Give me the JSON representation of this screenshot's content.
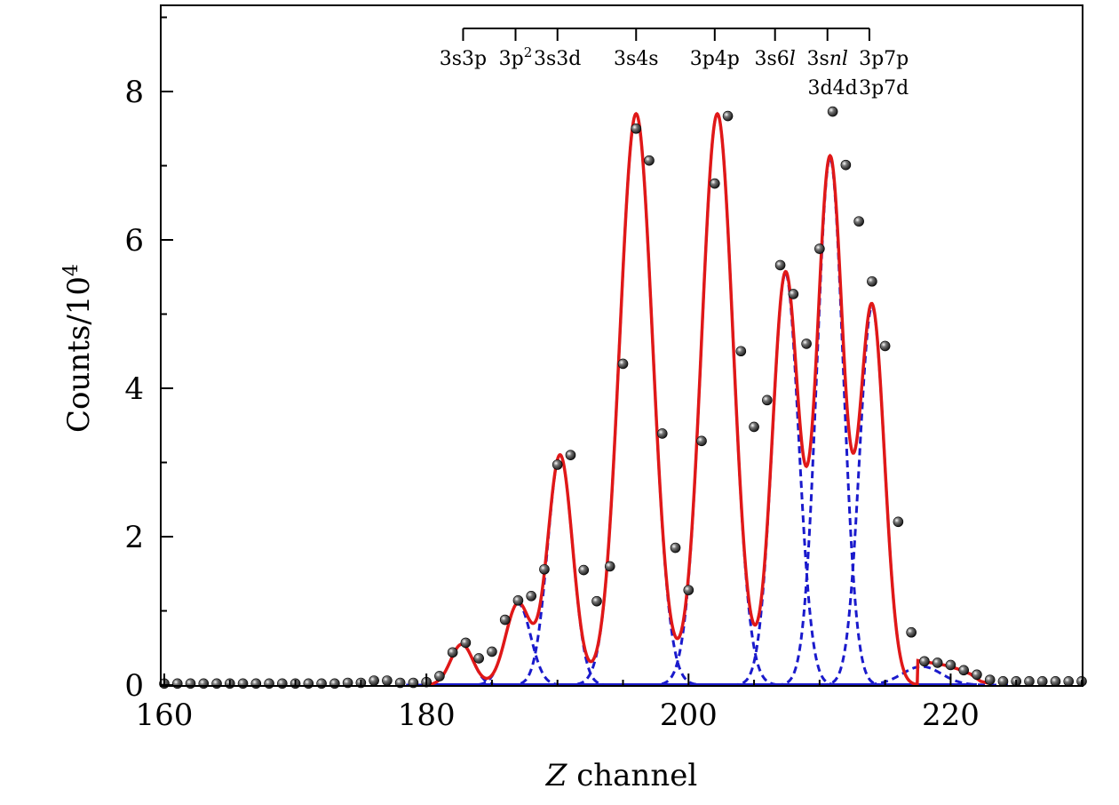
{
  "chart_data": {
    "type": "scatter",
    "xlabel": {
      "italic": "Z",
      "rest": " channel"
    },
    "ylabel": {
      "base": "Counts/10",
      "sup": "4"
    },
    "xlim": [
      160,
      230
    ],
    "ylim": [
      0,
      9.2
    ],
    "xticks": [
      160,
      180,
      200,
      220
    ],
    "yticks": [
      0,
      2,
      4,
      6,
      8
    ],
    "grid": false,
    "legend": "none",
    "colors": {
      "fit": "#e01818",
      "components": "#1a1acc",
      "points": "#111111"
    },
    "points": {
      "x": [
        160,
        161,
        162,
        163,
        164,
        165,
        166,
        167,
        168,
        169,
        170,
        171,
        172,
        173,
        174,
        175,
        176,
        177,
        178,
        179,
        180,
        181,
        182,
        183,
        184,
        185,
        186,
        187,
        188,
        189,
        190,
        191,
        192,
        193,
        194,
        195,
        196,
        197,
        198,
        199,
        200,
        201,
        202,
        203,
        204,
        205,
        206,
        207,
        208,
        209,
        210,
        211,
        212,
        213,
        214,
        215,
        216,
        217,
        218,
        219,
        220,
        221,
        222,
        223,
        224,
        225,
        226,
        227,
        228,
        229,
        230
      ],
      "y": [
        0.02,
        0.02,
        0.02,
        0.02,
        0.02,
        0.02,
        0.02,
        0.02,
        0.02,
        0.02,
        0.02,
        0.02,
        0.02,
        0.02,
        0.03,
        0.03,
        0.06,
        0.06,
        0.03,
        0.03,
        0.04,
        0.12,
        0.44,
        0.57,
        0.36,
        0.45,
        0.88,
        1.14,
        1.2,
        1.56,
        2.97,
        3.1,
        1.55,
        1.13,
        1.6,
        4.33,
        7.5,
        7.07,
        3.39,
        1.85,
        1.28,
        3.29,
        6.76,
        7.67,
        4.5,
        3.48,
        3.84,
        5.66,
        5.27,
        4.6,
        5.88,
        7.73,
        7.01,
        6.25,
        5.44,
        4.57,
        2.2,
        0.71,
        0.32,
        0.3,
        0.27,
        0.2,
        0.14,
        0.07,
        0.05,
        0.05,
        0.05,
        0.05,
        0.05,
        0.05,
        0.05
      ]
    },
    "components": [
      {
        "center": 182.7,
        "amplitude": 0.55,
        "sigma": 0.85
      },
      {
        "center": 187.0,
        "amplitude": 1.1,
        "sigma": 0.95
      },
      {
        "center": 190.2,
        "amplitude": 3.1,
        "sigma": 0.95
      },
      {
        "center": 196.0,
        "amplitude": 7.7,
        "sigma": 1.25
      },
      {
        "center": 202.2,
        "amplitude": 7.7,
        "sigma": 1.2
      },
      {
        "center": 207.4,
        "amplitude": 5.55,
        "sigma": 1.0
      },
      {
        "center": 210.8,
        "amplitude": 7.1,
        "sigma": 1.0
      },
      {
        "center": 214.0,
        "amplitude": 5.1,
        "sigma": 0.95
      },
      {
        "center": 217.8,
        "amplitude": 0.25,
        "sigma": 1.5
      }
    ],
    "fit_baseline": [
      {
        "x": 217.5,
        "y": 0.33
      },
      {
        "x": 218.5,
        "y": 0.3
      },
      {
        "x": 219.5,
        "y": 0.27
      },
      {
        "x": 220.5,
        "y": 0.22
      },
      {
        "x": 221.5,
        "y": 0.15
      },
      {
        "x": 222.3,
        "y": 0.05
      },
      {
        "x": 223.0,
        "y": 0.02
      }
    ],
    "annotations": {
      "bracket_start": 182.8,
      "bracket_end": 213.8,
      "markers": [
        182.8,
        186.8,
        190.0,
        196.0,
        202.0,
        206.6,
        210.6,
        213.8
      ],
      "labels": [
        {
          "x": 182.8,
          "parts": [
            {
              "t": "3s3p"
            }
          ]
        },
        {
          "x": 186.8,
          "parts": [
            {
              "t": "3p"
            },
            {
              "t": "2",
              "sup": true
            }
          ]
        },
        {
          "x": 190.0,
          "parts": [
            {
              "t": "3s3d"
            }
          ]
        },
        {
          "x": 196.0,
          "parts": [
            {
              "t": "3s4s"
            }
          ]
        },
        {
          "x": 202.0,
          "parts": [
            {
              "t": "3p4p"
            }
          ]
        },
        {
          "x": 206.6,
          "parts": [
            {
              "t": "3s6"
            },
            {
              "t": "l",
              "italic": true
            }
          ]
        },
        {
          "x": 210.6,
          "parts": [
            {
              "t": "3s"
            },
            {
              "t": "nl",
              "italic": true
            }
          ]
        },
        {
          "x": 214.9,
          "parts": [
            {
              "t": "3p7p"
            }
          ]
        },
        {
          "x": 211.0,
          "row": 2,
          "parts": [
            {
              "t": "3d4d"
            }
          ]
        },
        {
          "x": 214.9,
          "row": 2,
          "parts": [
            {
              "t": "3p7d"
            }
          ]
        }
      ]
    }
  }
}
